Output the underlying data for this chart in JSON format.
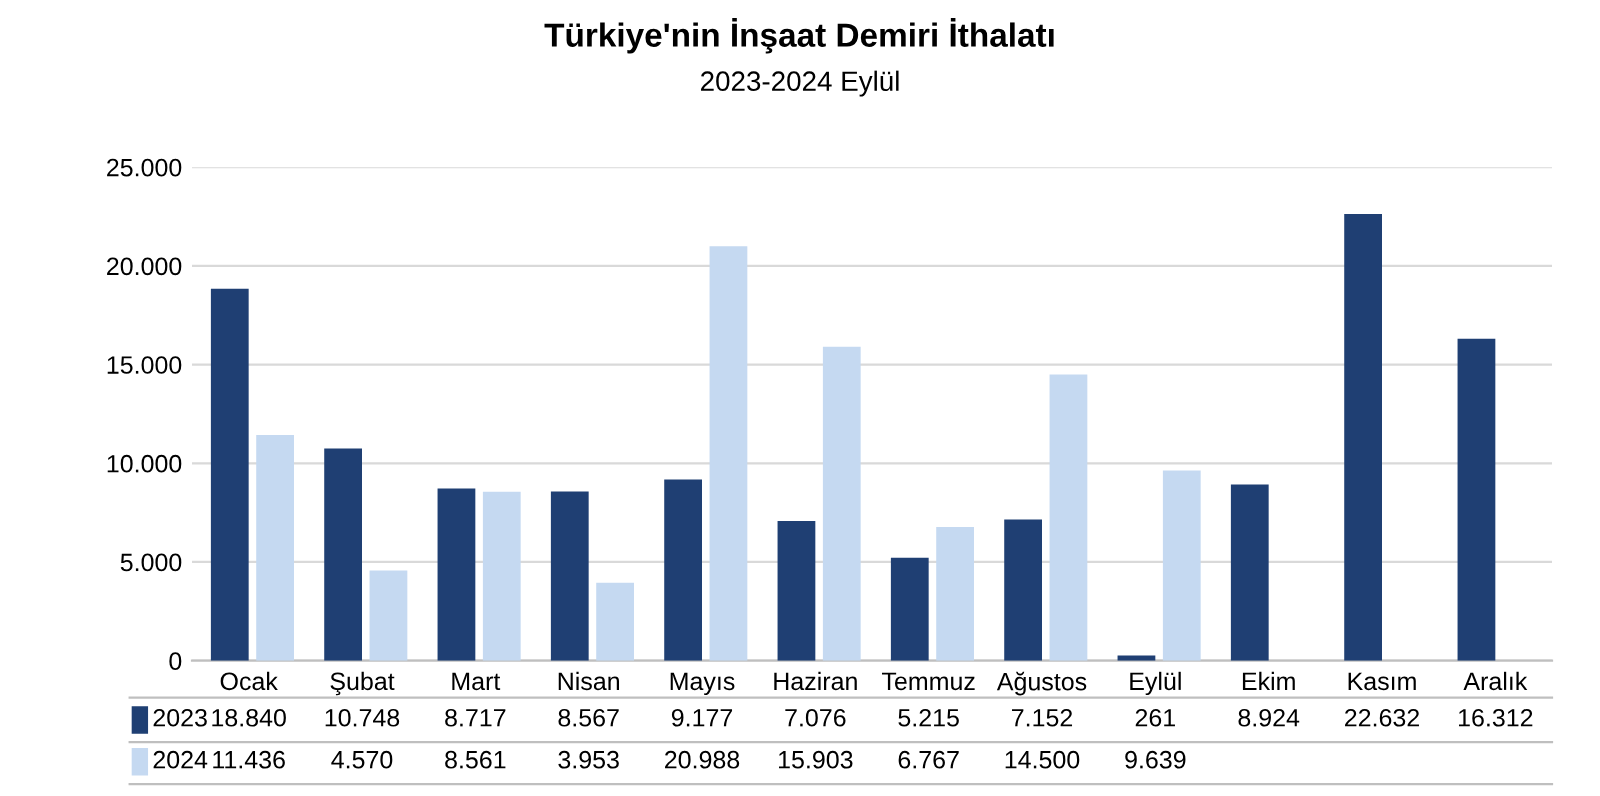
{
  "chart_data": {
    "type": "bar",
    "title": "Türkiye'nin İnşaat Demiri İthalatı",
    "subtitle": "2023-2024 Eylül",
    "categories": [
      "Ocak",
      "Şubat",
      "Mart",
      "Nisan",
      "Mayıs",
      "Haziran",
      "Temmuz",
      "Ağustos",
      "Eylül",
      "Ekim",
      "Kasım",
      "Aralık"
    ],
    "series": [
      {
        "name": "2023",
        "color": "#1f3f73",
        "values": [
          18840,
          10748,
          8717,
          8567,
          9177,
          7076,
          5215,
          7152,
          261,
          8924,
          22632,
          16312
        ],
        "value_labels": [
          "18.840",
          "10.748",
          "8.717",
          "8.567",
          "9.177",
          "7.076",
          "5.215",
          "7.152",
          "261",
          "8.924",
          "22.632",
          "16.312"
        ]
      },
      {
        "name": "2024",
        "color": "#c5d9f1",
        "values": [
          11436,
          4570,
          8561,
          3953,
          20988,
          15903,
          6767,
          14500,
          9639,
          null,
          null,
          null
        ],
        "value_labels": [
          "11.436",
          "4.570",
          "8.561",
          "3.953",
          "20.988",
          "15.903",
          "6.767",
          "14.500",
          "9.639",
          null,
          null,
          null
        ]
      }
    ],
    "ylim": [
      0,
      25000
    ],
    "yticks": [
      0,
      {
        "value": 5000,
        "label": "5.000"
      },
      {
        "value": 10000,
        "label": "10.000"
      },
      {
        "value": 15000,
        "label": "15.000"
      },
      {
        "value": 20000,
        "label": "20.000"
      },
      {
        "value": 25000,
        "label": "25.000"
      }
    ],
    "grid": "y",
    "legend": "bottom"
  }
}
